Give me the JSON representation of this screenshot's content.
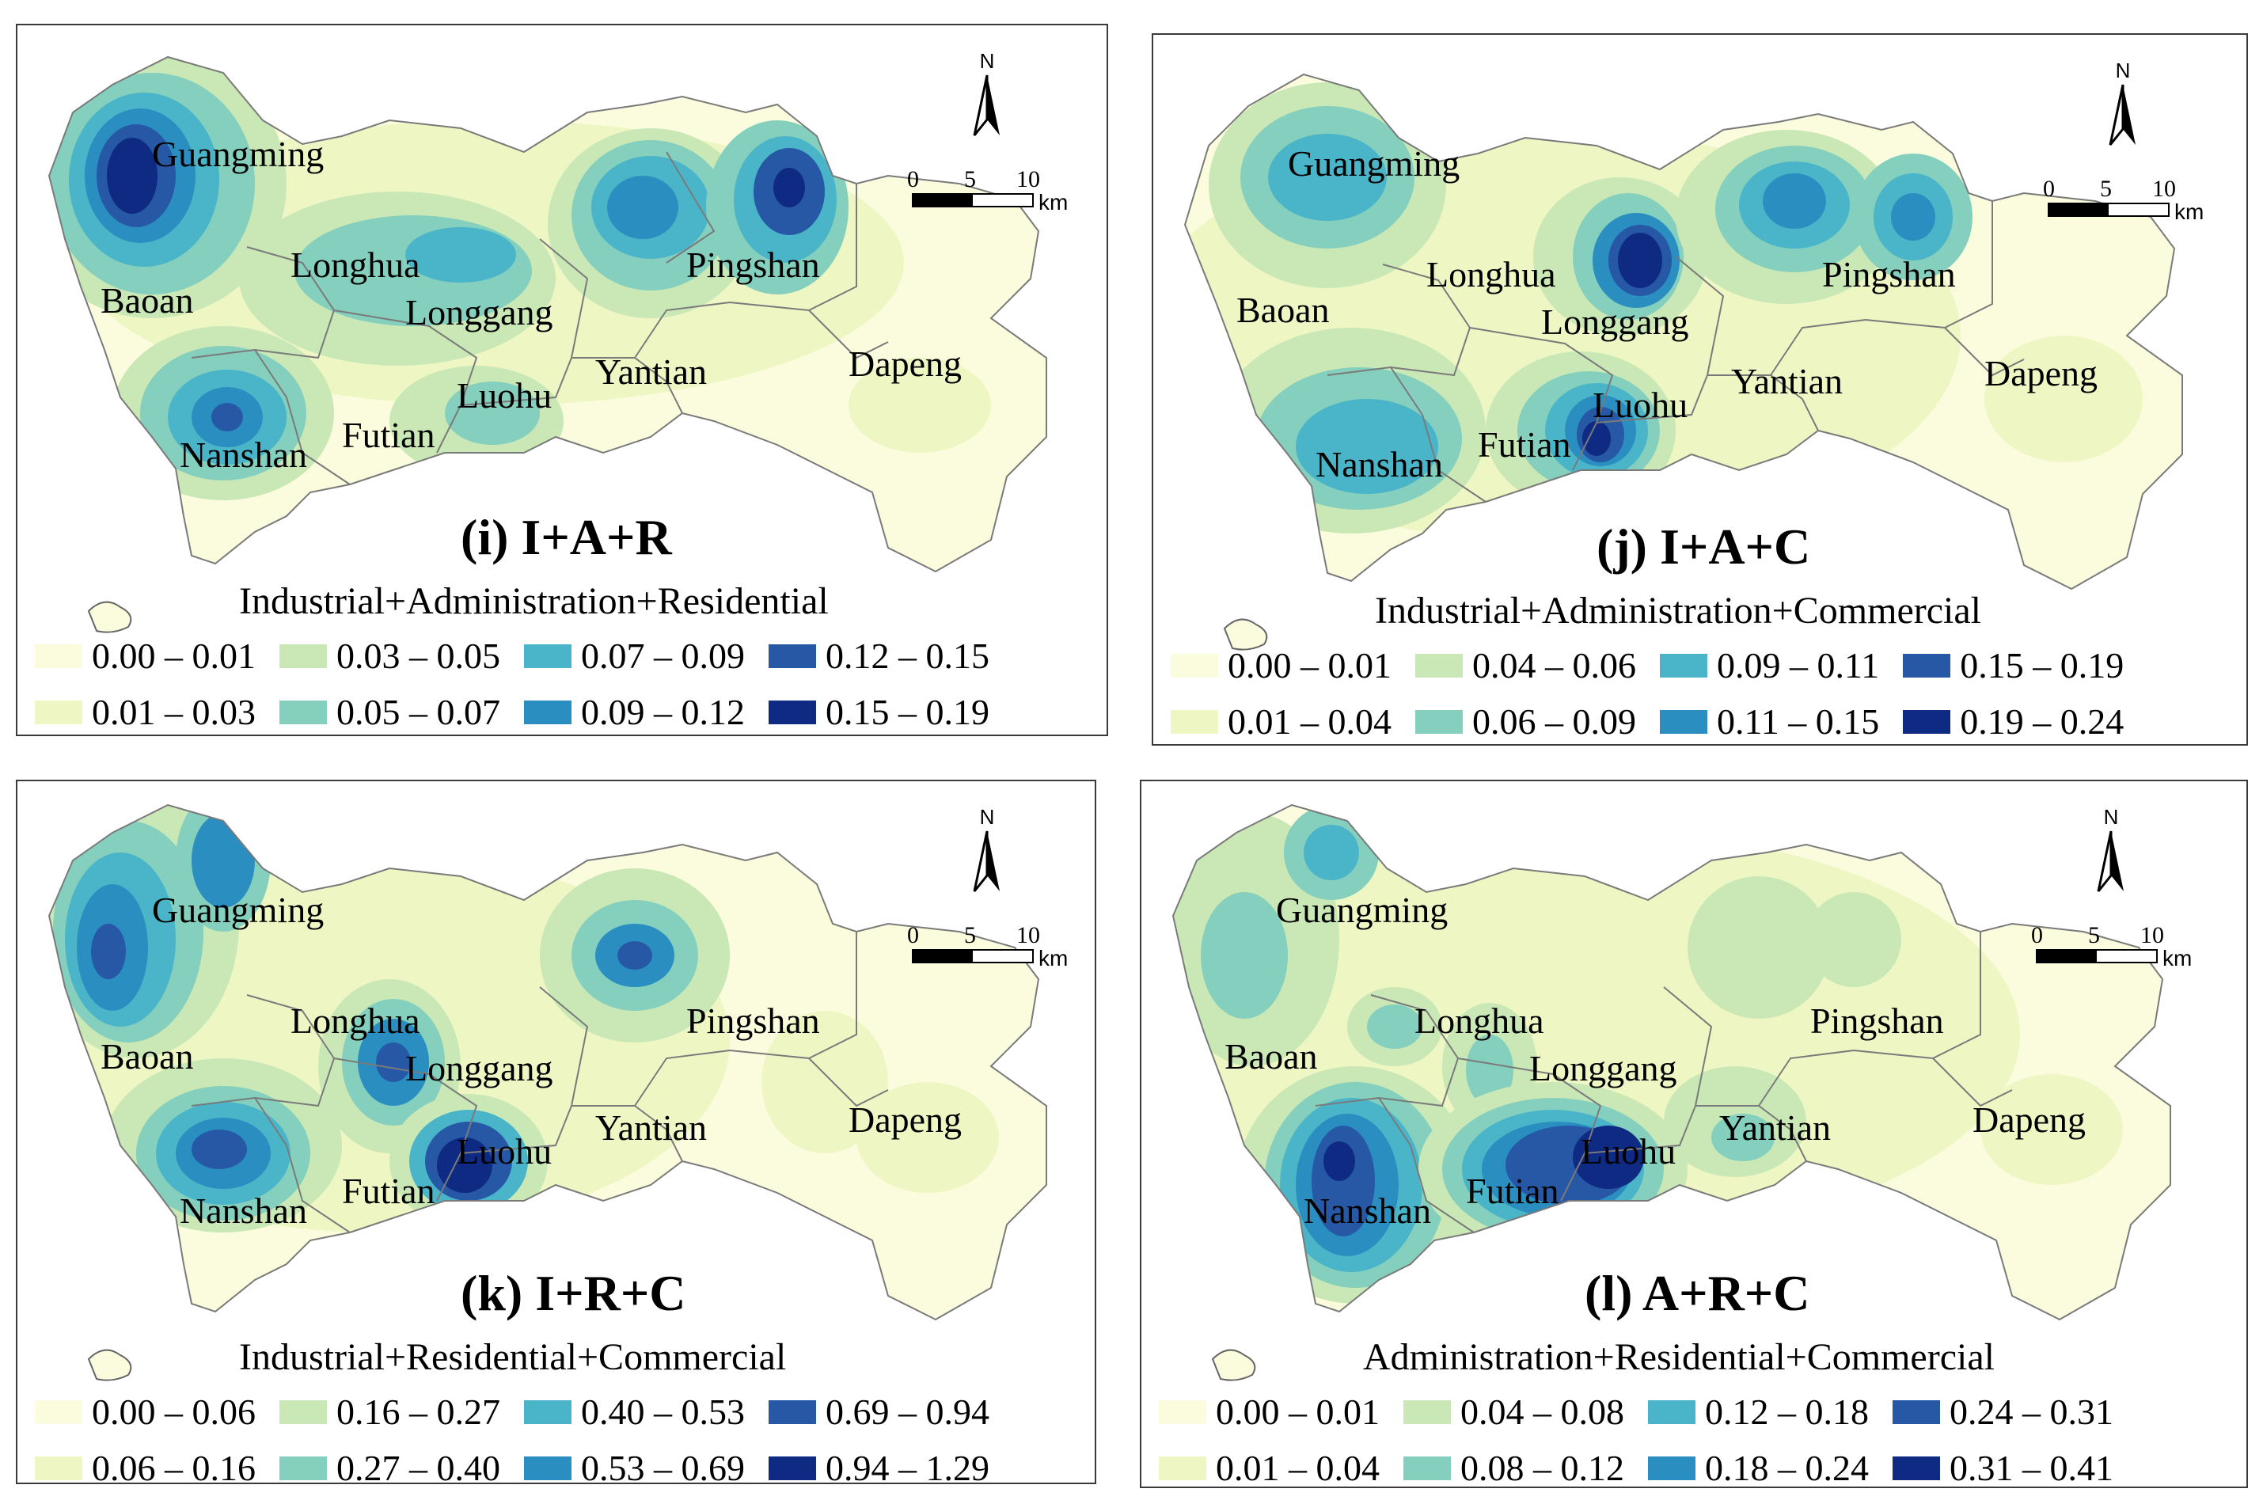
{
  "districts": [
    "Guangming",
    "Baoan",
    "Longhua",
    "Longgang",
    "Pingshan",
    "Nanshan",
    "Futian",
    "Luohu",
    "Yantian",
    "Dapeng"
  ],
  "north_label": "N",
  "scale": {
    "ticks": [
      "0",
      "5",
      "10"
    ],
    "unit": "km"
  },
  "palette": [
    "#fbfcdd",
    "#eef7c4",
    "#c9e8b6",
    "#84cfbd",
    "#4ab5c8",
    "#2a8fc0",
    "#2658a6",
    "#0e2a83"
  ],
  "panels": [
    {
      "id": "i",
      "title": "(i) I+A+R",
      "subtitle": "Industrial+Administration+Residential",
      "legend": [
        "0.00 – 0.01",
        "0.03 – 0.05",
        "0.07 – 0.09",
        "0.12 – 0.15",
        "0.01 – 0.03",
        "0.05 – 0.07",
        "0.09 – 0.12",
        "0.15 – 0.19"
      ]
    },
    {
      "id": "j",
      "title": "(j) I+A+C",
      "subtitle": "Industrial+Administration+Commercial",
      "legend": [
        "0.00 – 0.01",
        "0.04 – 0.06",
        "0.09 – 0.11",
        "0.15 – 0.19",
        "0.01 – 0.04",
        "0.06 – 0.09",
        "0.11 – 0.15",
        "0.19 – 0.24"
      ]
    },
    {
      "id": "k",
      "title": "(k) I+R+C",
      "subtitle": "Industrial+Residential+Commercial",
      "legend": [
        "0.00 – 0.06",
        "0.16 – 0.27",
        "0.40 – 0.53",
        "0.69 – 0.94",
        "0.06 – 0.16",
        "0.27 – 0.40",
        "0.53 – 0.69",
        "0.94 – 1.29"
      ]
    },
    {
      "id": "l",
      "title": "(l) A+R+C",
      "subtitle": "Administration+Residential+Commercial",
      "legend": [
        "0.00 – 0.01",
        "0.04 – 0.08",
        "0.12 – 0.18",
        "0.24 – 0.31",
        "0.01 – 0.04",
        "0.08 – 0.12",
        "0.18 – 0.24",
        "0.31 – 0.41"
      ]
    }
  ]
}
